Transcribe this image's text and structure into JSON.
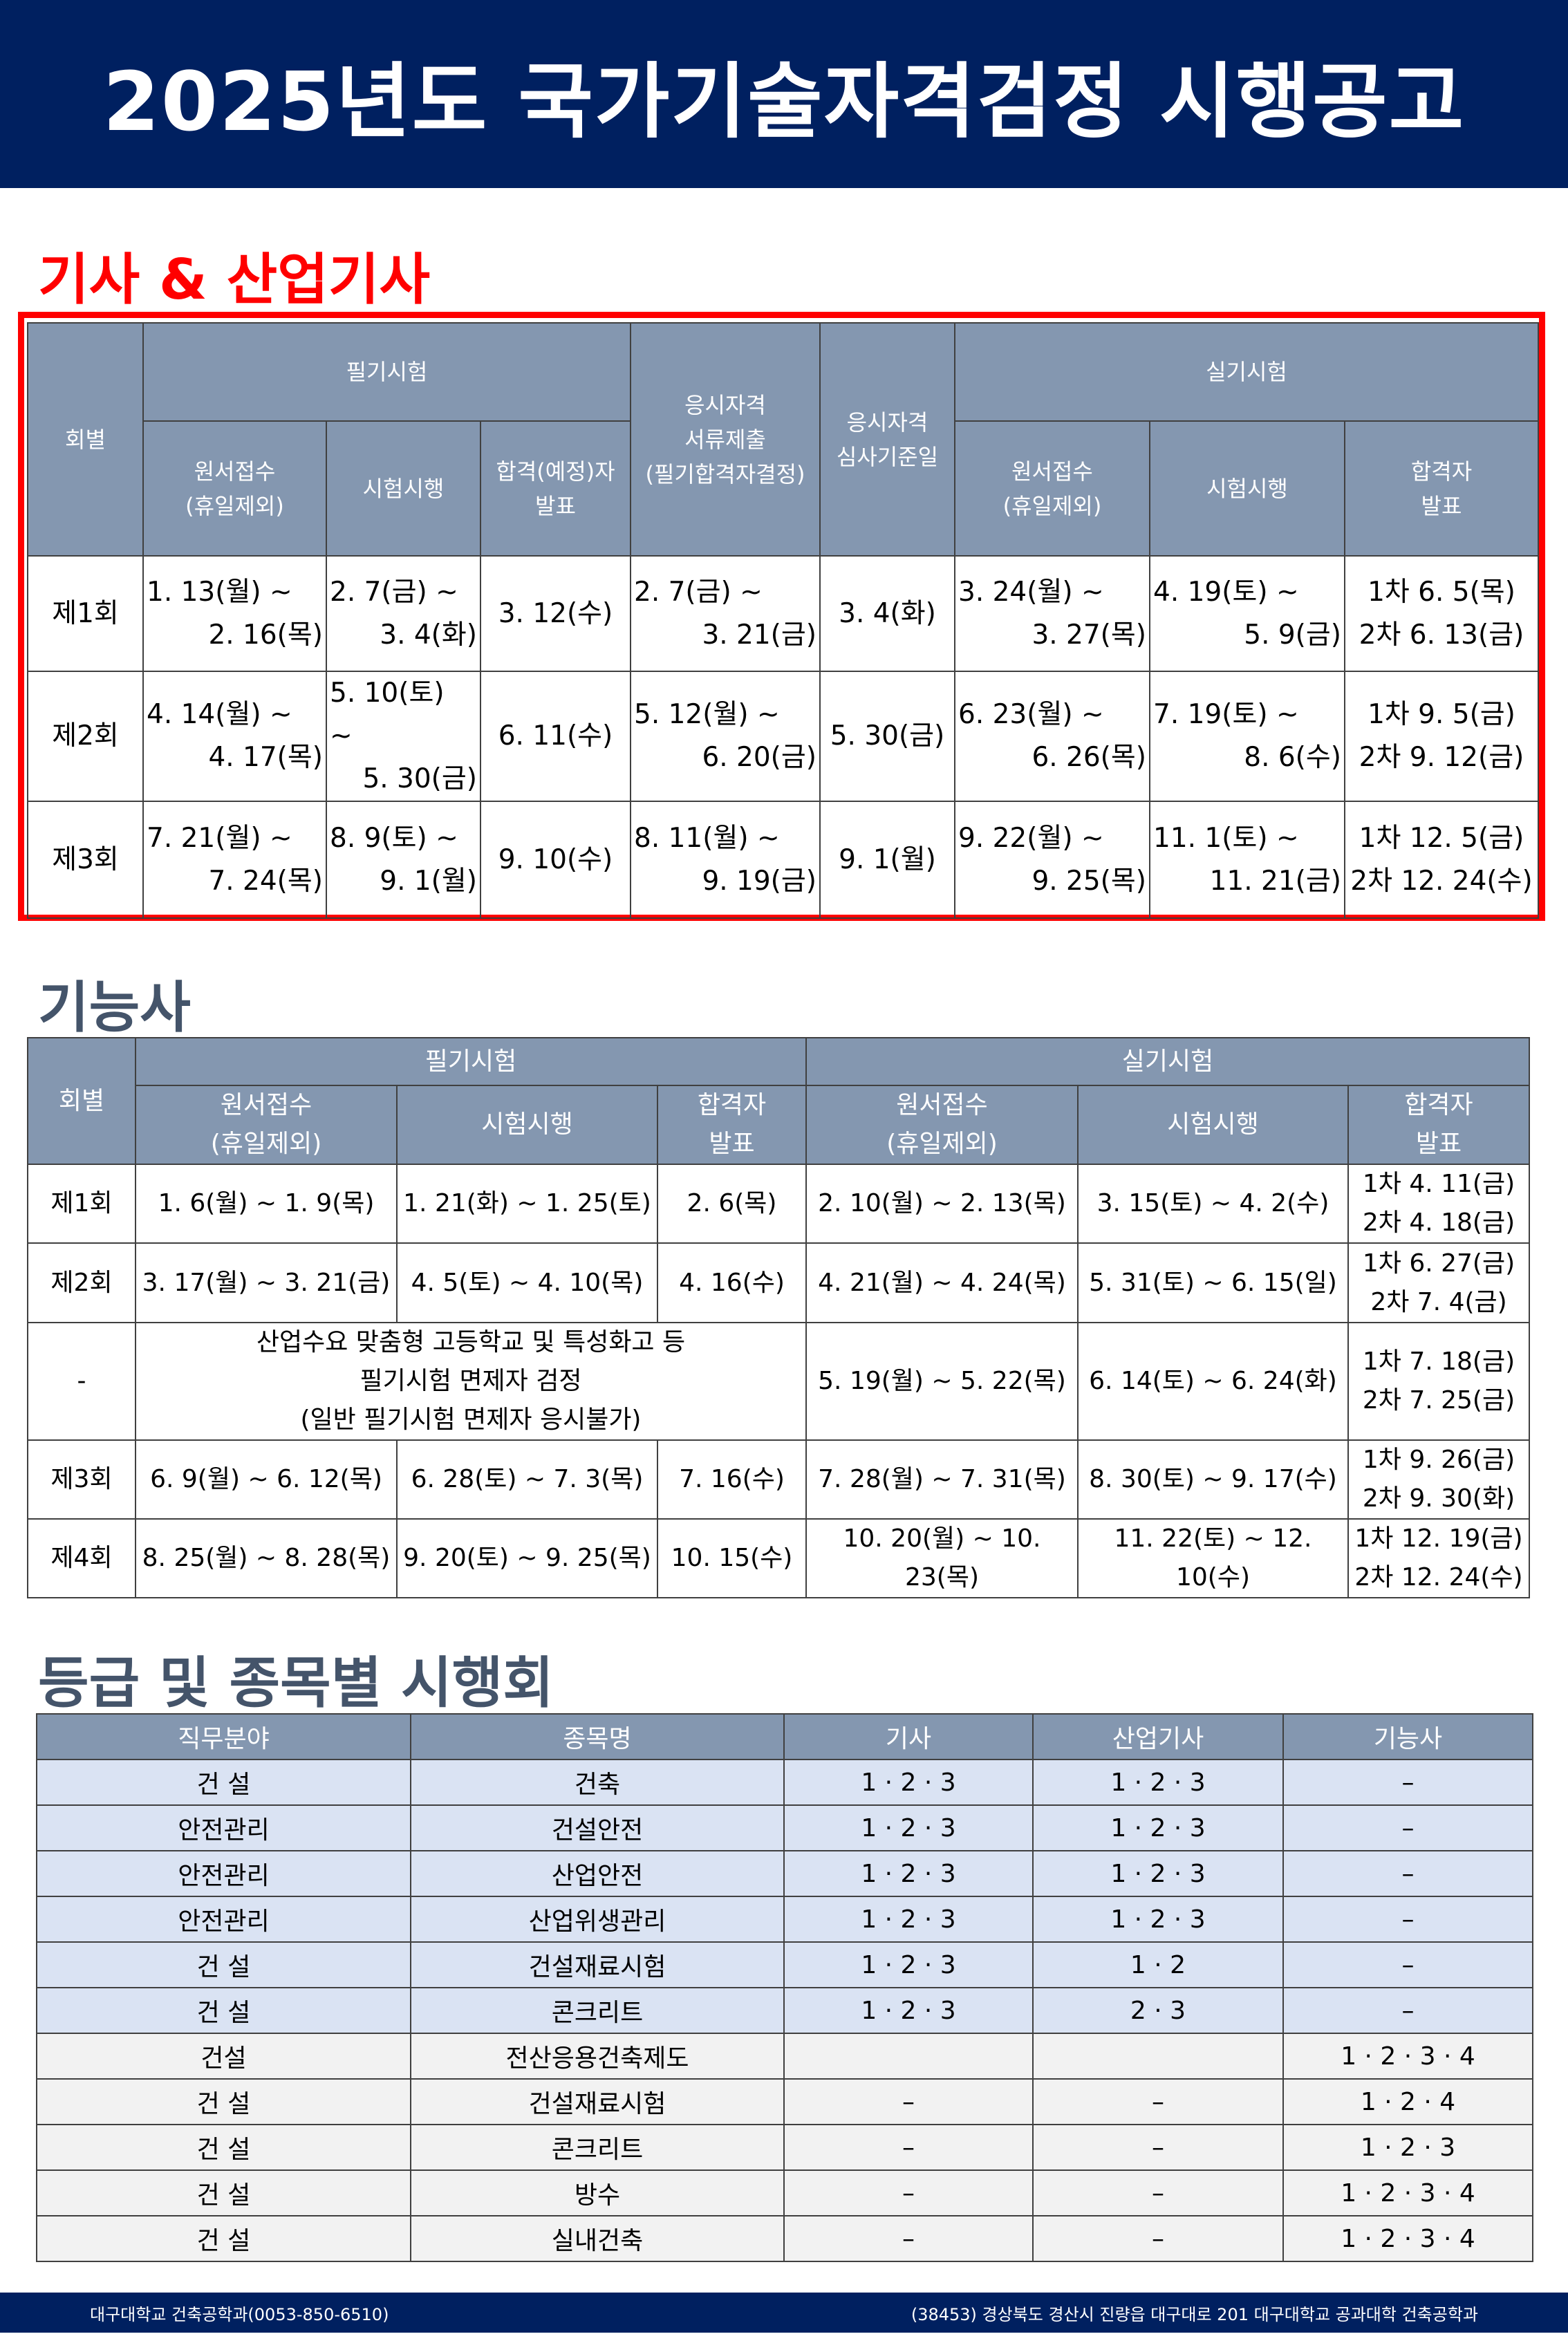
{
  "header": {
    "title": "2025년도 국가기술자격검정 시행공고"
  },
  "section1": {
    "title": "기사 & 산업기사",
    "headers": {
      "round": "회별",
      "written": "필기시험",
      "apply": [
        "원서접수",
        "(휴일제외)"
      ],
      "exam": "시험시행",
      "pass_written": [
        "합격(예정)자",
        "발표"
      ],
      "docs": [
        "응시자격",
        "서류제출",
        "(필기합격자결정)"
      ],
      "criteria": [
        "응시자격",
        "심사기준일"
      ],
      "practical": "실기시험",
      "pass": [
        "합격자",
        "발표"
      ]
    },
    "rows": [
      {
        "round": "제1회",
        "apply": [
          "1. 13(월) ~",
          "2. 16(목)"
        ],
        "exam": [
          "2. 7(금) ~",
          "3. 4(화)"
        ],
        "pass_written": "3. 12(수)",
        "docs": [
          "2. 7(금) ~",
          "3. 21(금)"
        ],
        "criteria": "3. 4(화)",
        "p_apply": [
          "3. 24(월) ~",
          "3. 27(목)"
        ],
        "p_exam": [
          "4. 19(토) ~",
          "5. 9(금)"
        ],
        "pass": [
          "1차 6.  5(목)",
          "2차 6. 13(금)"
        ]
      },
      {
        "round": "제2회",
        "apply": [
          "4. 14(월) ~",
          "4. 17(목)"
        ],
        "exam": [
          "5. 10(토)",
          "~",
          "5. 30(금)"
        ],
        "pass_written": "6. 11(수)",
        "docs": [
          "5. 12(월) ~",
          "6. 20(금)"
        ],
        "criteria": "5. 30(금)",
        "p_apply": [
          "6. 23(월) ~",
          "6. 26(목)"
        ],
        "p_exam": [
          "7. 19(토) ~",
          "8. 6(수)"
        ],
        "pass": [
          "1차 9.  5(금)",
          "2차 9. 12(금)"
        ]
      },
      {
        "round": "제3회",
        "apply": [
          "7. 21(월) ~",
          "7. 24(목)"
        ],
        "exam": [
          "8. 9(토) ~",
          "9. 1(월)"
        ],
        "pass_written": "9. 10(수)",
        "docs": [
          "8. 11(월) ~",
          "9. 19(금)"
        ],
        "criteria": "9. 1(월)",
        "p_apply": [
          "9. 22(월) ~",
          "9. 25(목)"
        ],
        "p_exam": [
          "11. 1(토) ~",
          "11. 21(금)"
        ],
        "pass": [
          "1차 12.  5(금)",
          "2차 12. 24(수)"
        ]
      }
    ]
  },
  "section2": {
    "title": "기능사",
    "headers": {
      "round": "회별",
      "written": "필기시험",
      "practical": "실기시험",
      "apply": [
        "원서접수",
        "(휴일제외)"
      ],
      "exam": "시험시행",
      "pass": [
        "합격자",
        "발표"
      ]
    },
    "rows": [
      {
        "round": "제1회",
        "apply": "1. 6(월) ~ 1. 9(목)",
        "exam": "1. 21(화) ~ 1. 25(토)",
        "pass_written": "2. 6(목)",
        "p_apply": "2. 10(월) ~ 2. 13(목)",
        "p_exam": "3. 15(토) ~ 4. 2(수)",
        "pass": [
          "1차 4. 11(금)",
          "2차 4. 18(금)"
        ]
      },
      {
        "round": "제2회",
        "apply": "3. 17(월) ~ 3. 21(금)",
        "exam": "4. 5(토) ~ 4. 10(목)",
        "pass_written": "4. 16(수)",
        "p_apply": "4. 21(월) ~ 4. 24(목)",
        "p_exam": "5. 31(토) ~ 6. 15(일)",
        "pass": [
          "1차 6. 27(금)",
          "2차 7. 4(금)"
        ]
      },
      {
        "round": "-",
        "note": [
          "산업수요 맞춤형 고등학교 및 특성화고 등",
          "필기시험 면제자 검정",
          "(일반 필기시험 면제자 응시불가)"
        ],
        "p_apply": "5. 19(월) ~ 5. 22(목)",
        "p_exam": "6. 14(토) ~ 6. 24(화)",
        "pass": [
          "1차 7. 18(금)",
          "2차 7. 25(금)"
        ]
      },
      {
        "round": "제3회",
        "apply": "6. 9(월) ~ 6. 12(목)",
        "exam": "6. 28(토) ~ 7. 3(목)",
        "pass_written": "7. 16(수)",
        "p_apply": "7. 28(월) ~ 7. 31(목)",
        "p_exam": "8. 30(토) ~ 9. 17(수)",
        "pass": [
          "1차 9. 26(금)",
          "2차 9. 30(화)"
        ]
      },
      {
        "round": "제4회",
        "apply": "8. 25(월) ~ 8. 28(목)",
        "exam": "9. 20(토) ~ 9. 25(목)",
        "pass_written": "10. 15(수)",
        "p_apply": "10. 20(월) ~ 10. 23(목)",
        "p_exam": "11. 22(토) ~ 12. 10(수)",
        "pass": [
          "1차 12. 19(금)",
          "2차 12. 24(수)"
        ]
      }
    ]
  },
  "section3": {
    "title": "등급 및 종목별 시행회",
    "headers": [
      "직무분야",
      "종목명",
      "기사",
      "산업기사",
      "기능사"
    ],
    "colors": {
      "header": "#8497b0",
      "blue_row": "#dae3f3",
      "gray_row": "#f2f2f2"
    },
    "rows": [
      {
        "group": "blue",
        "cells": [
          "건 설",
          "건축",
          "1 · 2 · 3",
          "1 · 2 · 3",
          "–"
        ]
      },
      {
        "group": "blue",
        "cells": [
          "안전관리",
          "건설안전",
          "1 · 2 · 3",
          "1 · 2 · 3",
          "–"
        ]
      },
      {
        "group": "blue",
        "cells": [
          "안전관리",
          "산업안전",
          "1 · 2 · 3",
          "1 · 2 · 3",
          "–"
        ]
      },
      {
        "group": "blue",
        "cells": [
          "안전관리",
          "산업위생관리",
          "1 · 2 · 3",
          "1 · 2 · 3",
          "–"
        ]
      },
      {
        "group": "blue",
        "cells": [
          "건 설",
          "건설재료시험",
          "1 · 2 · 3",
          "1 · 2",
          "–"
        ]
      },
      {
        "group": "blue",
        "cells": [
          "건 설",
          "콘크리트",
          "1 · 2 · 3",
          "2 · 3",
          "–"
        ]
      },
      {
        "group": "gray",
        "cells": [
          "건설",
          "전산응용건축제도",
          "",
          "",
          "1 · 2 · 3 · 4"
        ]
      },
      {
        "group": "gray",
        "cells": [
          "건 설",
          "건설재료시험",
          "–",
          "–",
          "1 · 2 · 4"
        ]
      },
      {
        "group": "gray",
        "cells": [
          "건 설",
          "콘크리트",
          "–",
          "–",
          "1 · 2 · 3"
        ]
      },
      {
        "group": "gray",
        "cells": [
          "건 설",
          "방수",
          "–",
          "–",
          "1 · 2 · 3 · 4"
        ]
      },
      {
        "group": "gray",
        "cells": [
          "건 설",
          "실내건축",
          "–",
          "–",
          "1 · 2 · 3 · 4"
        ]
      }
    ]
  },
  "footer": {
    "left": "대구대학교 건축공학과(0053-850-6510)",
    "right": "(38453) 경상북도 경산시 진량읍 대구대로 201 대구대학교 공과대학 건축공학과"
  },
  "colors": {
    "navy": "#002060",
    "accent_red": "#ff0000",
    "section_title": "#44546a"
  }
}
